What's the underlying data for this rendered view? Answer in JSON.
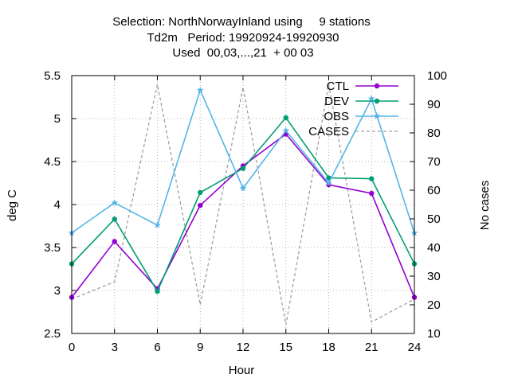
{
  "chart_data": {
    "type": "line",
    "title_lines": [
      "Selection: NorthNorwayInland using     9 stations",
      "Td2m   Period: 19920924-19920930",
      "Used  00,03,...,21  + 00 03"
    ],
    "xlabel": "Hour",
    "ylabel": "deg C",
    "y2label": "No cases",
    "x": [
      0,
      3,
      6,
      9,
      12,
      15,
      18,
      21,
      24
    ],
    "xlim": [
      0,
      24
    ],
    "ylim": [
      2.5,
      5.5
    ],
    "y2lim": [
      10,
      100
    ],
    "xticks": [
      "0",
      "3",
      "6",
      "9",
      "12",
      "15",
      "18",
      "21",
      "24"
    ],
    "yticks": [
      "2.5",
      "3",
      "3.5",
      "4",
      "4.5",
      "5",
      "5.5"
    ],
    "y2ticks": [
      "10",
      "20",
      "30",
      "40",
      "50",
      "60",
      "70",
      "80",
      "90",
      "100"
    ],
    "grid": true,
    "legend_position": "top-right",
    "series": [
      {
        "name": "CTL",
        "axis": "left",
        "color": "#9400d3",
        "marker": "circle",
        "values": [
          2.92,
          3.57,
          3.02,
          3.99,
          4.45,
          4.82,
          4.23,
          4.13,
          2.92
        ]
      },
      {
        "name": "DEV",
        "axis": "left",
        "color": "#009e73",
        "marker": "circle",
        "values": [
          3.31,
          3.83,
          2.99,
          4.14,
          4.42,
          5.01,
          4.31,
          4.3,
          3.31
        ]
      },
      {
        "name": "OBS",
        "axis": "left",
        "color": "#56b4e9",
        "marker": "star",
        "values": [
          3.67,
          4.02,
          3.76,
          5.33,
          4.19,
          4.86,
          4.25,
          5.23,
          3.67
        ]
      },
      {
        "name": "CASES",
        "axis": "right",
        "color": "#a0a0a0",
        "dashed": true,
        "values": [
          22,
          28,
          97,
          20,
          96,
          13,
          97,
          14,
          22
        ]
      }
    ]
  }
}
